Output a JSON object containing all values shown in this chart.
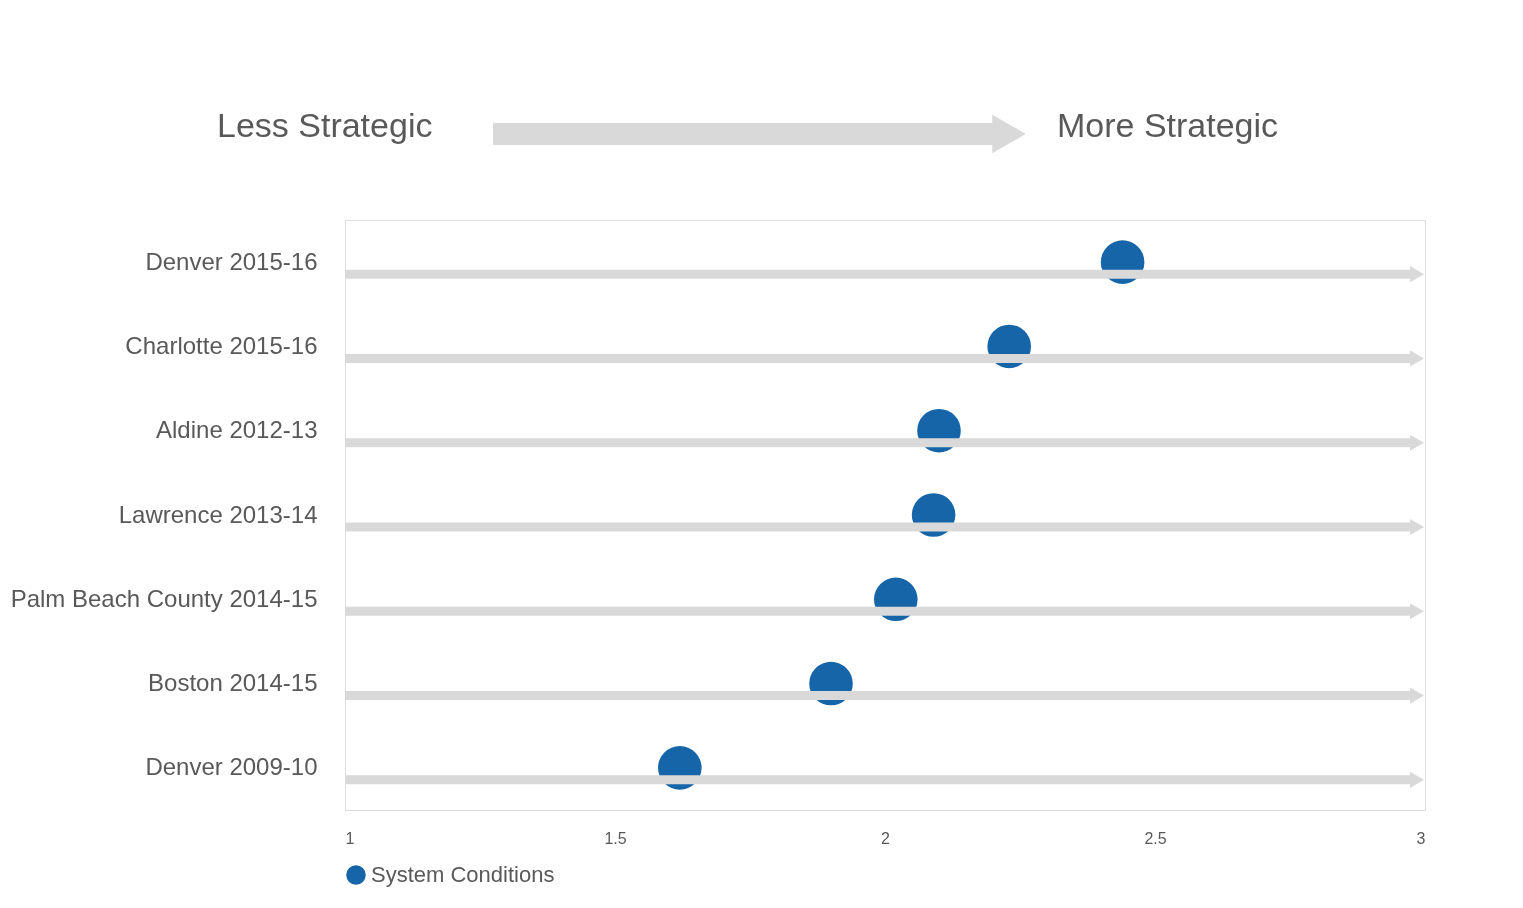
{
  "chart_data": {
    "type": "scatter",
    "orientation": "horizontal",
    "annotations": [
      "Less Strategic",
      "More Strategic"
    ],
    "categories": [
      "Denver 2015-16",
      "Charlotte 2015-16",
      "Aldine 2012-13",
      "Lawrence 2013-14",
      "Palm Beach County 2014-15",
      "Boston 2014-15",
      "Denver 2009-10"
    ],
    "series": [
      {
        "name": "System Conditions",
        "color": "#1565a8",
        "values": [
          2.44,
          2.23,
          2.1,
          2.09,
          2.02,
          1.9,
          1.62
        ]
      }
    ],
    "xlim": [
      1,
      3
    ],
    "xticks": [
      1,
      1.5,
      2,
      2.5,
      3
    ],
    "marker": "circle",
    "legend": "bottom",
    "grid": false
  }
}
